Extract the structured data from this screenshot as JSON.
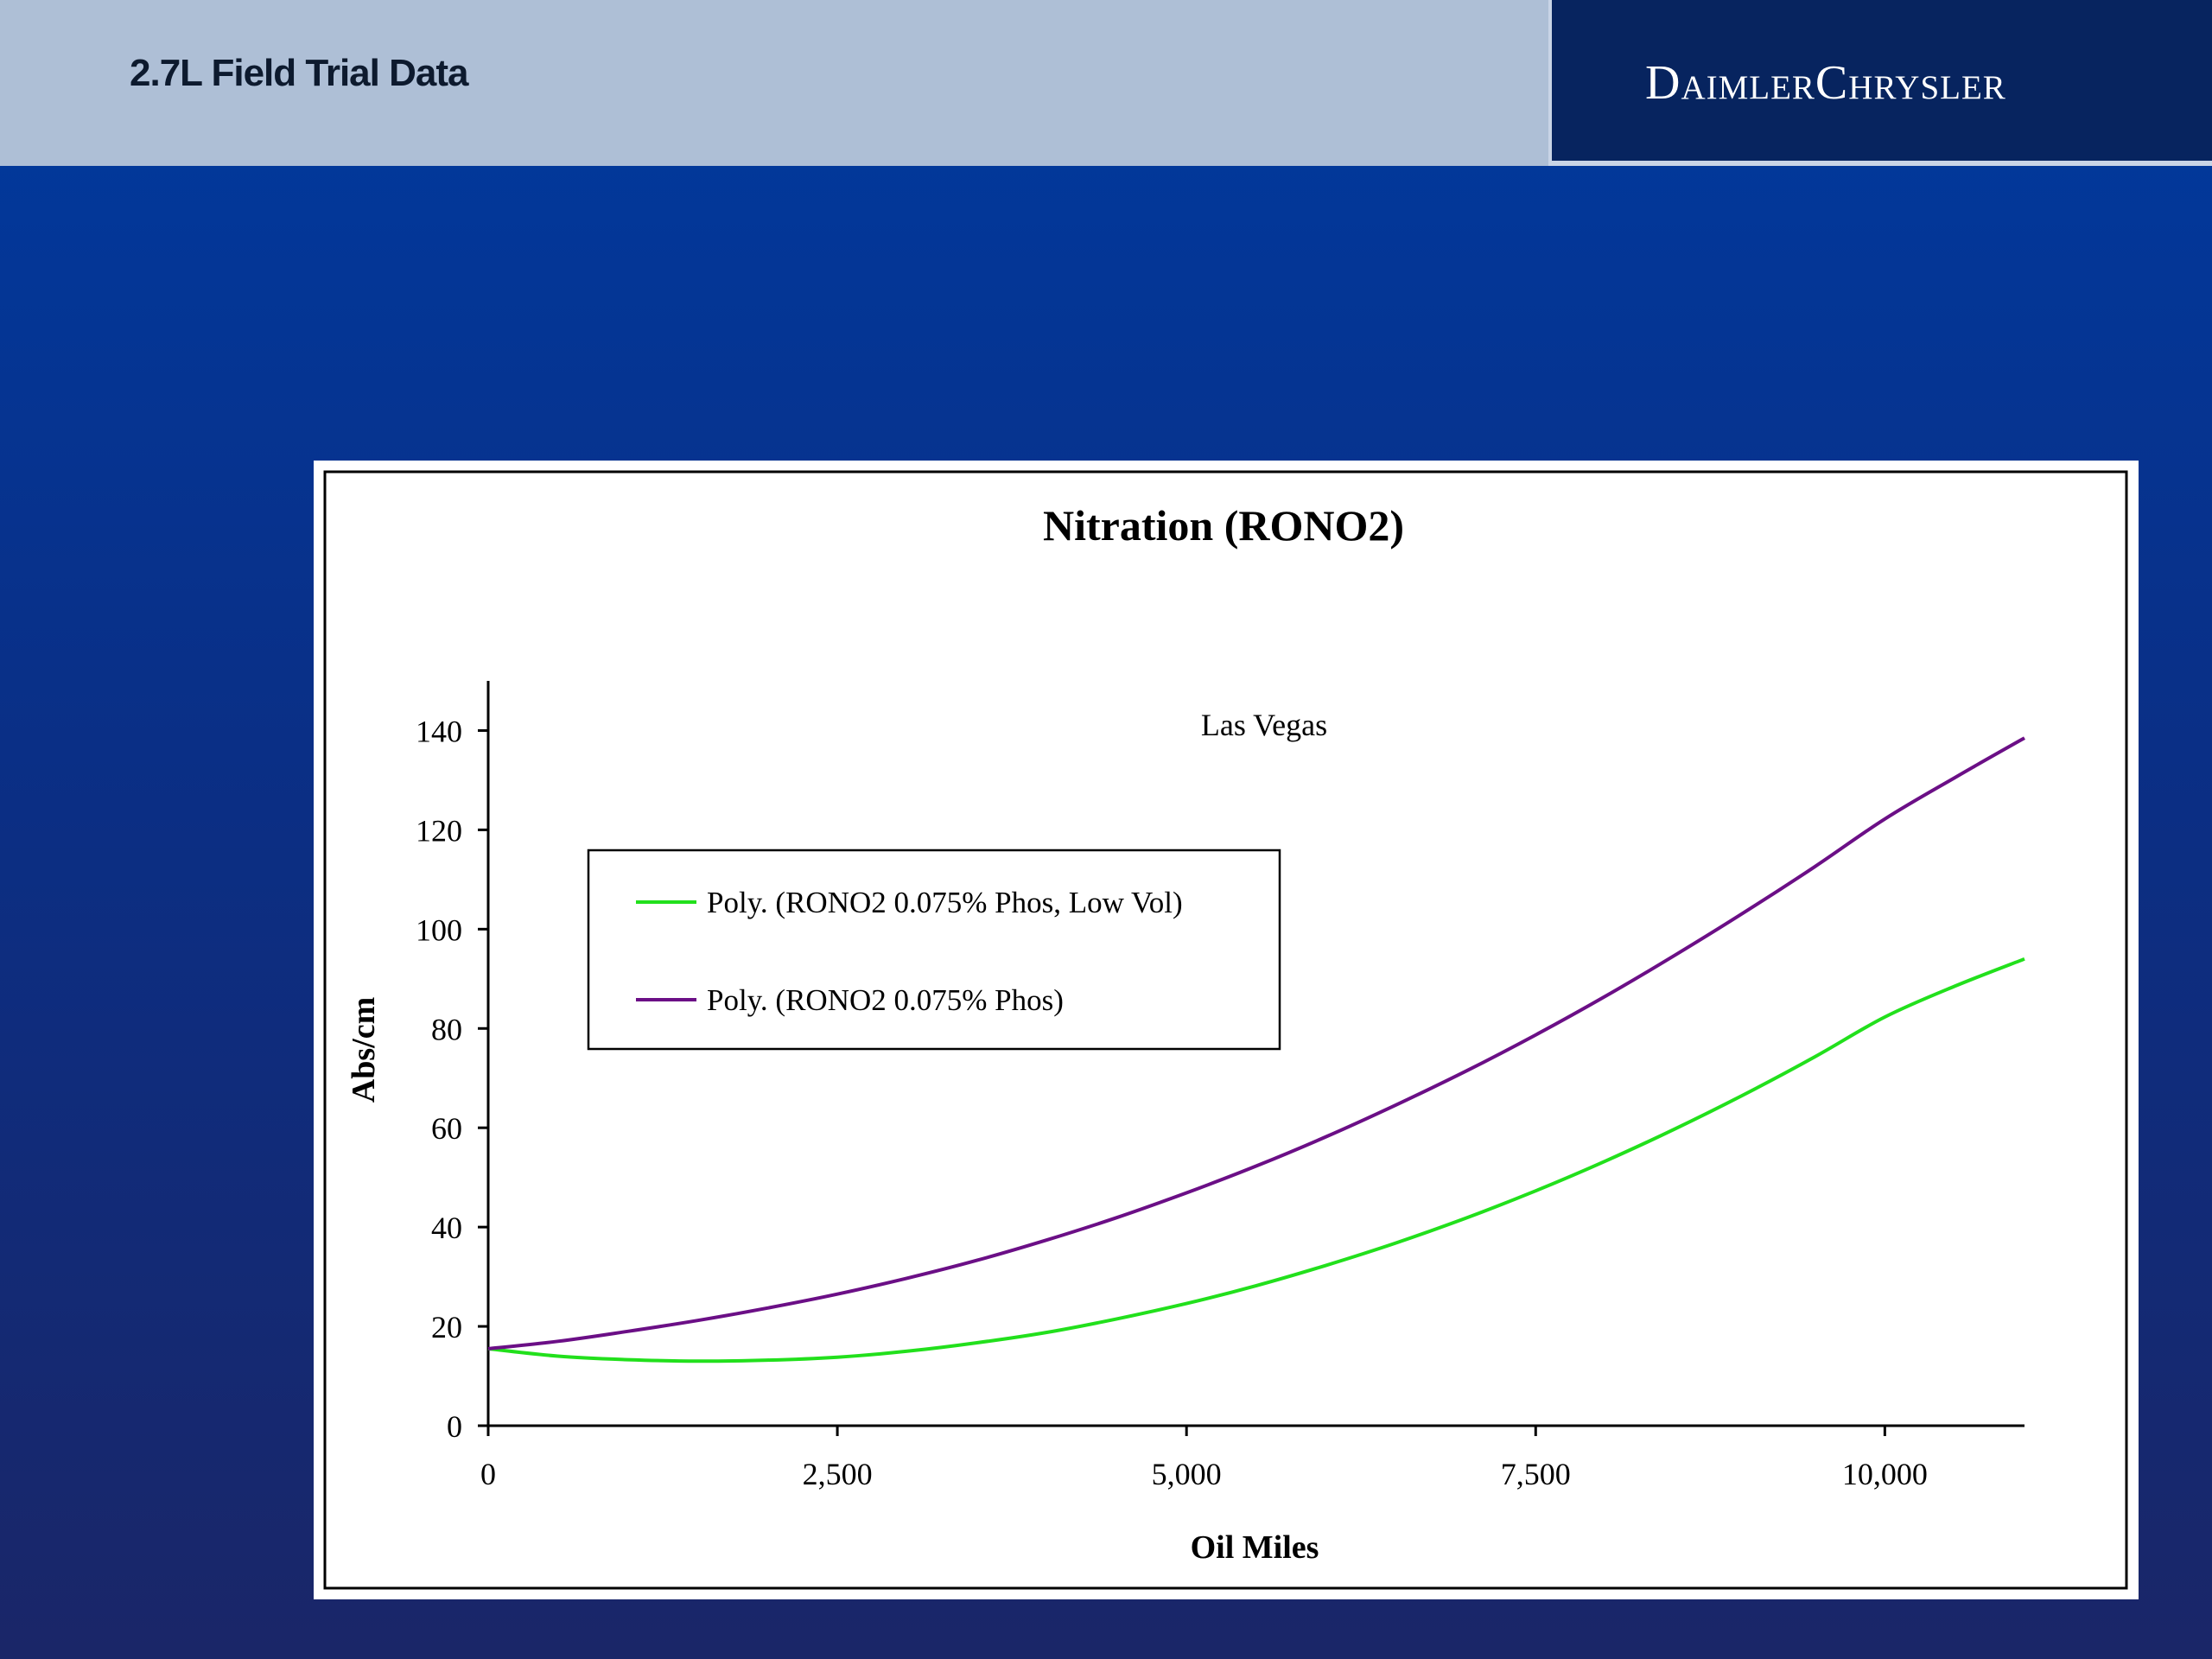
{
  "header": {
    "title": "2.7L Field Trial Data",
    "brand": "DaimlerChrysler"
  },
  "colors": {
    "background_top": "#003a9f",
    "background_bottom": "#1a2668",
    "header_left": "#aebfd6",
    "header_right": "#07245f",
    "series_green": "#22e01c",
    "series_purple": "#6b0f86"
  },
  "chart_data": {
    "type": "line",
    "title": "Nitration (RONO2)",
    "subtitle": "Las Vegas",
    "xlabel": "Oil Miles",
    "ylabel": "Abs/cm",
    "xlim": [
      0,
      11000
    ],
    "ylim": [
      0,
      150
    ],
    "x_ticks": [
      0,
      2500,
      5000,
      7500,
      10000
    ],
    "x_tick_labels": [
      "0",
      "2,500",
      "5,000",
      "7,500",
      "10,000"
    ],
    "y_ticks": [
      0,
      20,
      40,
      60,
      80,
      100,
      120,
      140
    ],
    "y_tick_labels": [
      "0",
      "20",
      "40",
      "60",
      "80",
      "100",
      "120",
      "140"
    ],
    "grid": false,
    "legend_position": "upper-left",
    "x": [
      0,
      500,
      1000,
      1500,
      2000,
      2500,
      3000,
      3500,
      4000,
      4500,
      5000,
      5500,
      6000,
      6500,
      7000,
      7500,
      8000,
      8500,
      9000,
      9500,
      10000,
      10500,
      11000
    ],
    "series": [
      {
        "name": "Poly. (RONO2 0.075% Phos, Low Vol)",
        "color": "#22e01c",
        "values": [
          15.5,
          14,
          13.3,
          13,
          13.2,
          13.8,
          15,
          16.7,
          18.8,
          21.5,
          24.6,
          28.2,
          32.3,
          36.8,
          41.8,
          47.3,
          53.3,
          59.8,
          66.8,
          74.3,
          82.3,
          88.5,
          94
        ]
      },
      {
        "name": "Poly. (RONO2 0.075% Phos)",
        "color": "#6b0f86",
        "values": [
          15.5,
          17,
          19,
          21.2,
          23.7,
          26.5,
          29.7,
          33.3,
          37.4,
          41.9,
          46.9,
          52.3,
          58.2,
          64.6,
          71.4,
          78.7,
          86.5,
          94.8,
          103.5,
          112.6,
          122.2,
          130.5,
          138.5
        ]
      }
    ]
  }
}
